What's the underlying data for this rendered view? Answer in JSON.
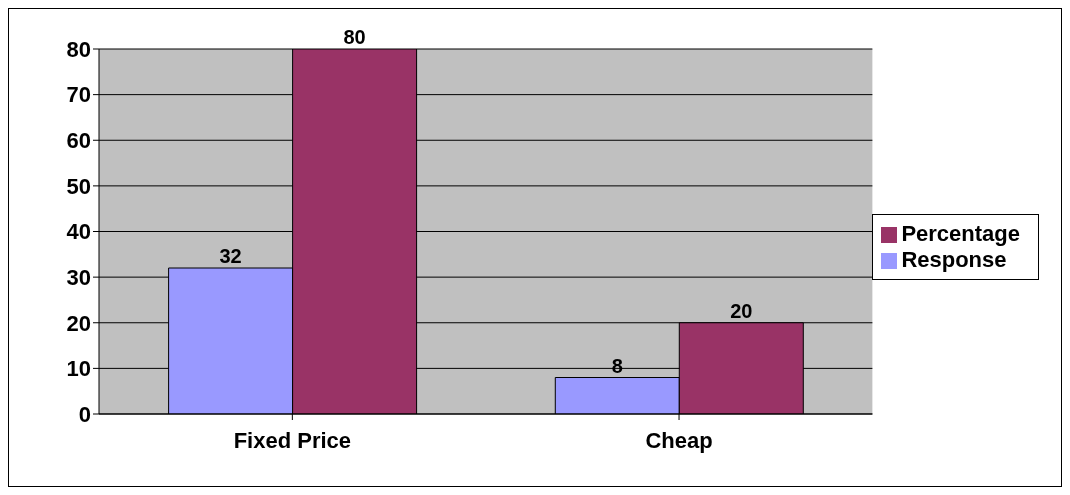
{
  "chart_data": {
    "type": "bar",
    "categories": [
      "Fixed Price",
      "Cheap"
    ],
    "series": [
      {
        "name": "Response",
        "color": "#9999ff",
        "values": [
          32,
          8
        ]
      },
      {
        "name": "Percentage",
        "color": "#993366",
        "values": [
          80,
          20
        ]
      }
    ],
    "ylim": [
      0,
      80
    ],
    "yticks": [
      0,
      10,
      20,
      30,
      40,
      50,
      60,
      70,
      80
    ],
    "grid": "y",
    "legend": "right",
    "data_labels": true
  }
}
